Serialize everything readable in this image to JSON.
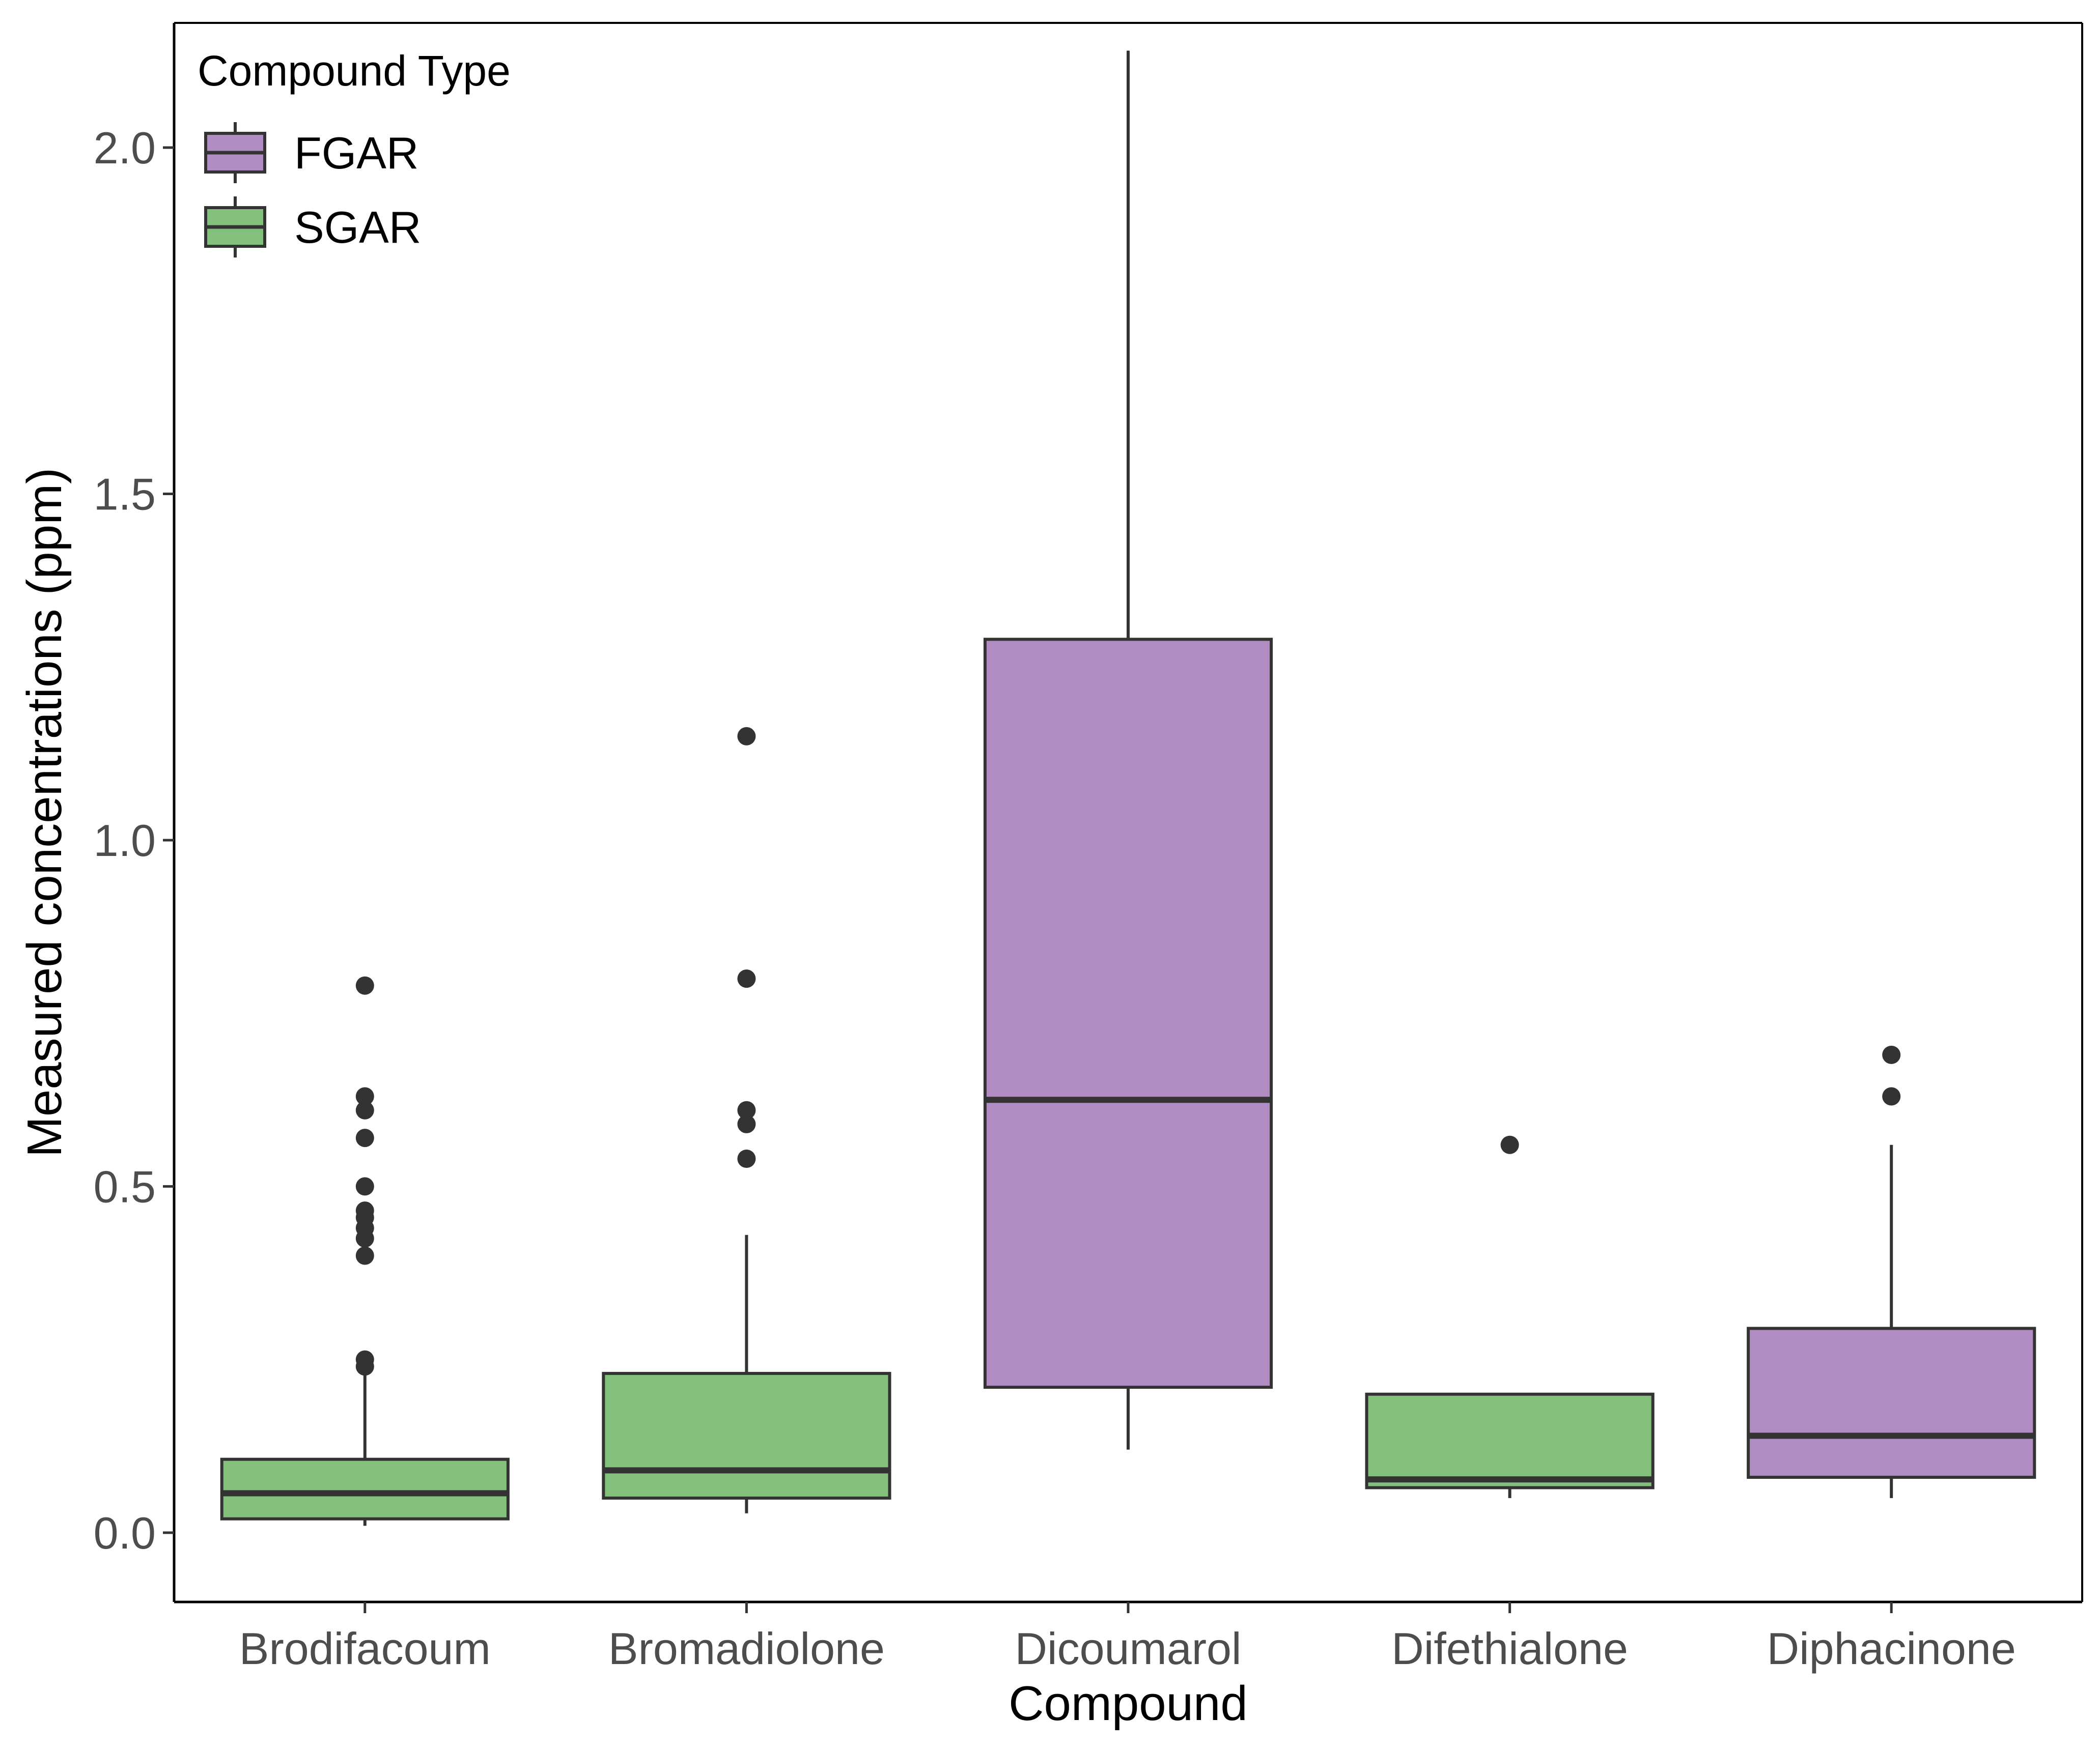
{
  "chart_data": {
    "type": "boxplot",
    "title": "",
    "xlabel": "Compound",
    "ylabel": "Measured concentrations (ppm)",
    "ylim": [
      -0.1,
      2.18
    ],
    "yticks": [
      0.0,
      0.5,
      1.0,
      1.5,
      2.0
    ],
    "ytick_labels": [
      "0.0",
      "0.5",
      "1.0",
      "1.5",
      "2.0"
    ],
    "grid": false,
    "legend": {
      "title": "Compound Type",
      "position": "top-left",
      "entries": [
        {
          "label": "FGAR",
          "color": "#b18cc3"
        },
        {
          "label": "SGAR",
          "color": "#82c07c"
        }
      ]
    },
    "categories": [
      "Brodifacoum",
      "Bromadiolone",
      "Dicoumarol",
      "Difethialone",
      "Diphacinone"
    ],
    "boxes": [
      {
        "category": "Brodifacoum",
        "type": "SGAR",
        "whisker_low": 0.01,
        "q1": 0.02,
        "median": 0.057,
        "q3": 0.106,
        "whisker_high": 0.235,
        "outliers": [
          0.79,
          0.63,
          0.61,
          0.57,
          0.5,
          0.465,
          0.455,
          0.44,
          0.425,
          0.4,
          0.25,
          0.24
        ]
      },
      {
        "category": "Bromadiolone",
        "type": "SGAR",
        "whisker_low": 0.028,
        "q1": 0.05,
        "median": 0.09,
        "q3": 0.23,
        "whisker_high": 0.43,
        "outliers": [
          1.15,
          0.8,
          0.61,
          0.59,
          0.54
        ]
      },
      {
        "category": "Dicoumarol",
        "type": "FGAR",
        "whisker_low": 0.12,
        "q1": 0.21,
        "median": 0.625,
        "q3": 1.29,
        "whisker_high": 2.14,
        "outliers": []
      },
      {
        "category": "Difethialone",
        "type": "SGAR",
        "whisker_low": 0.05,
        "q1": 0.065,
        "median": 0.077,
        "q3": 0.2,
        "whisker_high": 0.2,
        "outliers": [
          0.56
        ]
      },
      {
        "category": "Diphacinone",
        "type": "FGAR",
        "whisker_low": 0.05,
        "q1": 0.08,
        "median": 0.14,
        "q3": 0.295,
        "whisker_high": 0.56,
        "outliers": [
          0.69,
          0.63
        ]
      }
    ],
    "colors": {
      "FGAR": "#b18cc3",
      "SGAR": "#82c07c",
      "line": "#333333",
      "axis": "#000000"
    }
  }
}
